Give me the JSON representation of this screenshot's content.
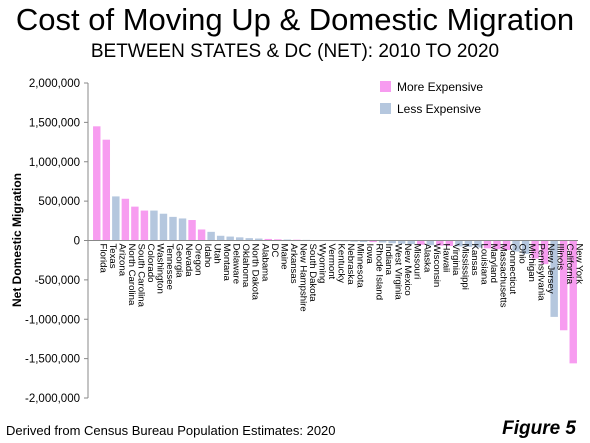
{
  "title": "Cost of Moving Up & Domestic Migration",
  "subtitle": "BETWEEN STATES & DC (NET): 2010 TO 2020",
  "footnote": "Derived from Census Bureau Population Estimates: 2020",
  "figure_label": "Figure 5",
  "colors": {
    "more_expensive": "#F79CF0",
    "less_expensive": "#B5C7DE"
  },
  "chart_data": {
    "type": "bar",
    "ylabel": "Net Domestic Migration",
    "ylim": [
      -2000000,
      2000000
    ],
    "yticks": [
      2000000,
      1500000,
      1000000,
      500000,
      0,
      -500000,
      -1000000,
      -1500000,
      -2000000
    ],
    "ytick_labels": [
      "2,000,000",
      "1,500,000",
      "1,000,000",
      "500,000",
      "0",
      "-500,000",
      "-1,000,000",
      "-1,500,000",
      "-2,000,000"
    ],
    "grid": false,
    "legend_position": "top-right",
    "legend": [
      {
        "label": "More Expensive",
        "category": "more"
      },
      {
        "label": "Less Expensive",
        "category": "less"
      }
    ],
    "categories": [
      "Florida",
      "Texas",
      "Arizona",
      "North Carolina",
      "South Carolina",
      "Colorado",
      "Washington",
      "Tennessee",
      "Georgia",
      "Nevada",
      "Oregon",
      "Idaho",
      "Utah",
      "Montana",
      "Delaware",
      "Oklahoma",
      "North Dakota",
      "Alabama",
      "DC",
      "Maine",
      "Arkansas",
      "New Hampshire",
      "South Dakota",
      "Wyoming",
      "Vermont",
      "Kentucky",
      "Nebraska",
      "Minnesota",
      "Iowa",
      "Rhode Island",
      "Indiana",
      "West Virginia",
      "New Mexico",
      "Missouri",
      "Alaska",
      "Wisconsin",
      "Hawaii",
      "Virginia",
      "Mississippi",
      "Kansas",
      "Louisiana",
      "Maryland",
      "Massachusetts",
      "Connecticut",
      "Ohio",
      "Michigan",
      "Pennsylvania",
      "New Jersey",
      "Illinois",
      "California",
      "New York"
    ],
    "values": [
      1450000,
      1280000,
      560000,
      530000,
      430000,
      380000,
      380000,
      340000,
      300000,
      280000,
      260000,
      140000,
      110000,
      60000,
      50000,
      40000,
      30000,
      25000,
      20000,
      15000,
      12000,
      10000,
      8000,
      5000,
      2000,
      -5000,
      -10000,
      -15000,
      -20000,
      -20000,
      -25000,
      -35000,
      -40000,
      -45000,
      -55000,
      -60000,
      -65000,
      -70000,
      -75000,
      -80000,
      -90000,
      -100000,
      -110000,
      -120000,
      -140000,
      -170000,
      -230000,
      -300000,
      -970000,
      -1140000,
      -1560000
    ],
    "bar_category": [
      "more",
      "more",
      "less",
      "more",
      "more",
      "more",
      "less",
      "less",
      "less",
      "less",
      "more",
      "more",
      "less",
      "less",
      "less",
      "less",
      "less",
      "less",
      "more",
      "more",
      "less",
      "more",
      "less",
      "less",
      "more",
      "less",
      "less",
      "less",
      "less",
      "more",
      "less",
      "less",
      "less",
      "less",
      "more",
      "less",
      "more",
      "more",
      "less",
      "less",
      "less",
      "more",
      "more",
      "more",
      "less",
      "less",
      "more",
      "more",
      "less",
      "more",
      "more"
    ]
  }
}
